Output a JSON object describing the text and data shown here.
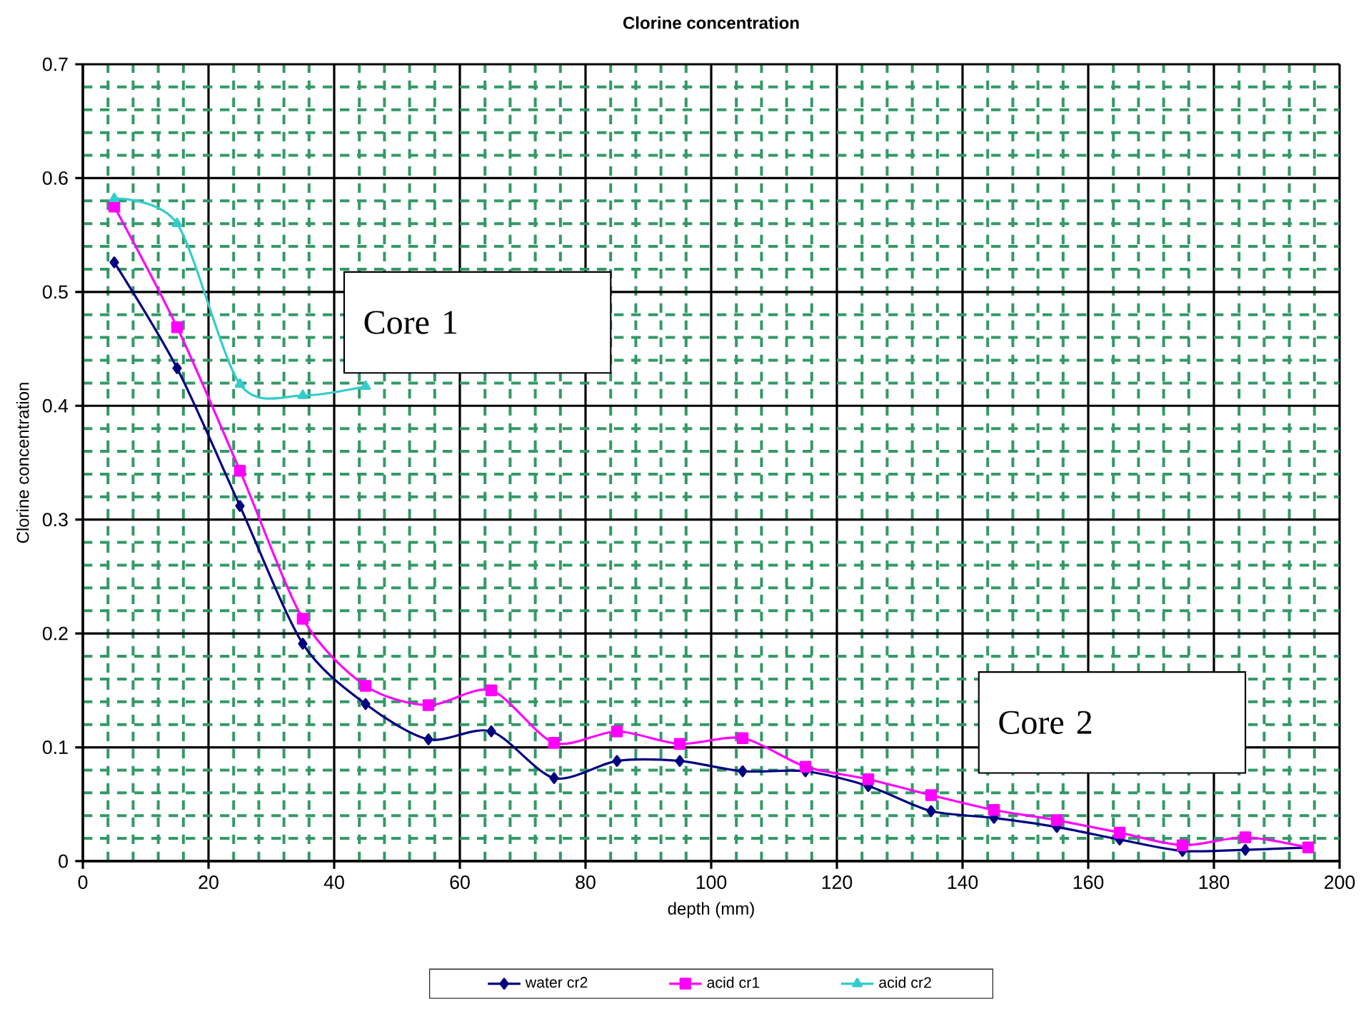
{
  "chart_data": {
    "type": "line",
    "title": "Clorine concentration",
    "xlabel": "depth (mm)",
    "ylabel": "Clorine concentration",
    "xlim": [
      0,
      200
    ],
    "xticks": [
      0,
      {
        "value": 4,
        "label": null
      },
      {
        "value": 8,
        "label": null
      },
      {
        "value": 12,
        "label": null
      },
      {
        "value": 16,
        "label": null
      },
      20,
      {
        "value": 24,
        "label": null
      },
      {
        "value": 28,
        "label": null
      },
      {
        "value": 32,
        "label": null
      },
      {
        "value": 36,
        "label": null
      },
      40,
      {
        "value": 44,
        "label": null
      },
      {
        "value": 48,
        "label": null
      },
      {
        "value": 52,
        "label": null
      },
      {
        "value": 56,
        "label": null
      },
      60,
      {
        "value": 64,
        "label": null
      },
      {
        "value": 68,
        "label": null
      },
      {
        "value": 72,
        "label": null
      },
      {
        "value": 76,
        "label": null
      },
      80,
      {
        "value": 84,
        "label": null
      },
      {
        "value": 88,
        "label": null
      },
      {
        "value": 92,
        "label": null
      },
      {
        "value": 96,
        "label": null
      },
      100,
      {
        "value": 104,
        "label": null
      },
      {
        "value": 108,
        "label": null
      },
      {
        "value": 112,
        "label": null
      },
      {
        "value": 116,
        "label": null
      },
      120,
      {
        "value": 124,
        "label": null
      },
      {
        "value": 128,
        "label": null
      },
      {
        "value": 132,
        "label": null
      },
      {
        "value": 136,
        "label": null
      },
      140,
      {
        "value": 144,
        "label": null
      },
      {
        "value": 148,
        "label": null
      },
      {
        "value": 152,
        "label": null
      },
      {
        "value": 156,
        "label": null
      },
      160,
      {
        "value": 164,
        "label": null
      },
      {
        "value": 168,
        "label": null
      },
      {
        "value": 172,
        "label": null
      },
      {
        "value": 176,
        "label": null
      },
      180,
      {
        "value": 184,
        "label": null
      },
      {
        "value": 188,
        "label": null
      },
      {
        "value": 192,
        "label": null
      },
      {
        "value": 196,
        "label": null
      },
      200
    ],
    "ylim": [
      0,
      0.7
    ],
    "yticks": [
      0,
      {
        "value": 0.02,
        "label": null
      },
      {
        "value": 0.04,
        "label": null
      },
      {
        "value": 0.06,
        "label": null
      },
      {
        "value": 0.08,
        "label": null
      },
      0.1,
      {
        "value": 0.12,
        "label": null
      },
      {
        "value": 0.14,
        "label": null
      },
      {
        "value": 0.16,
        "label": null
      },
      {
        "value": 0.18,
        "label": null
      },
      0.2,
      {
        "value": 0.22,
        "label": null
      },
      {
        "value": 0.24,
        "label": null
      },
      {
        "value": 0.26,
        "label": null
      },
      {
        "value": 0.28,
        "label": null
      },
      0.3,
      {
        "value": 0.32,
        "label": null
      },
      {
        "value": 0.34,
        "label": null
      },
      {
        "value": 0.36,
        "label": null
      },
      {
        "value": 0.38,
        "label": null
      },
      0.4,
      {
        "value": 0.42,
        "label": null
      },
      {
        "value": 0.44,
        "label": null
      },
      {
        "value": 0.46,
        "label": null
      },
      {
        "value": 0.48,
        "label": null
      },
      0.5,
      {
        "value": 0.52,
        "label": null
      },
      {
        "value": 0.54,
        "label": null
      },
      {
        "value": 0.56,
        "label": null
      },
      {
        "value": 0.58,
        "label": null
      },
      0.6,
      {
        "value": 0.62,
        "label": null
      },
      {
        "value": 0.64,
        "label": null
      },
      {
        "value": 0.66,
        "label": null
      },
      {
        "value": 0.68,
        "label": null
      },
      0.7
    ],
    "grid": true,
    "legend": "bottom",
    "annotations": [
      "Core 1",
      "Core 2"
    ],
    "series": [
      {
        "name": "water cr2",
        "color": "#000080",
        "marker": "diamond",
        "x": [
          5,
          15,
          25,
          35,
          45,
          55,
          65,
          75,
          85,
          95,
          105,
          115,
          125,
          135,
          145,
          155,
          165,
          175,
          185,
          195
        ],
        "values": [
          0.526,
          0.433,
          0.312,
          0.191,
          0.138,
          0.107,
          0.114,
          0.073,
          0.088,
          0.088,
          0.079,
          0.079,
          0.066,
          0.044,
          0.038,
          0.03,
          0.019,
          0.009,
          0.01,
          0.012
        ]
      },
      {
        "name": "acid cr1",
        "color": "#ff00ff",
        "marker": "square",
        "x": [
          5,
          15,
          25,
          35,
          45,
          55,
          65,
          75,
          85,
          95,
          105,
          115,
          125,
          135,
          145,
          155,
          165,
          175,
          185,
          195
        ],
        "values": [
          0.575,
          0.469,
          0.343,
          0.213,
          0.154,
          0.137,
          0.15,
          0.104,
          0.114,
          0.103,
          0.108,
          0.083,
          0.072,
          0.058,
          0.045,
          0.036,
          0.025,
          0.014,
          0.021,
          0.012
        ]
      },
      {
        "name": "acid cr2",
        "color": "#33cccc",
        "marker": "triangle",
        "x": [
          5,
          15,
          25,
          35,
          45
        ],
        "values": [
          0.582,
          0.56,
          0.419,
          0.409,
          0.417
        ]
      }
    ]
  }
}
